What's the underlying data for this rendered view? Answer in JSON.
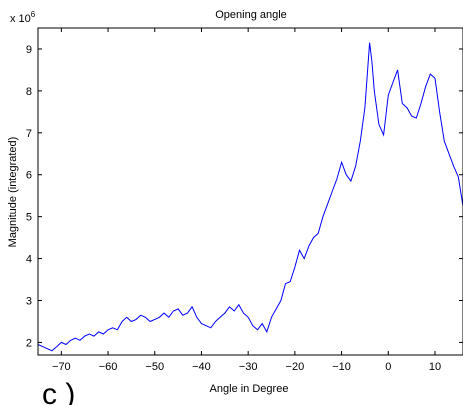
{
  "chart_data": {
    "type": "line",
    "title": "Opening angle",
    "xlabel": "Angle in Degree",
    "ylabel": "Magnitude (integrated)",
    "y_exponent_base": "x 10",
    "y_exponent_power": "6",
    "xlim": [
      -75,
      16
    ],
    "ylim": [
      1.7,
      9.5
    ],
    "x_ticks": [
      -70,
      -60,
      -50,
      -40,
      -30,
      -20,
      -10,
      0,
      10
    ],
    "x_tick_labels": [
      "−70",
      "−60",
      "−50",
      "−40",
      "−30",
      "−20",
      "−10",
      "0",
      "10"
    ],
    "y_ticks": [
      2,
      3,
      4,
      5,
      6,
      7,
      8,
      9
    ],
    "y_tick_labels": [
      "2",
      "3",
      "4",
      "5",
      "6",
      "7",
      "8",
      "9"
    ],
    "grid": false,
    "line_color": "#0000ff",
    "series": [
      {
        "x": [
          -75,
          -74,
          -73,
          -72,
          -71,
          -70,
          -69,
          -68,
          -67,
          -66,
          -65,
          -64,
          -63,
          -62,
          -61,
          -60,
          -59,
          -58,
          -57,
          -56,
          -55,
          -54,
          -53,
          -52,
          -51,
          -50,
          -49,
          -48,
          -47,
          -46,
          -45,
          -44,
          -43,
          -42,
          -41,
          -40,
          -39,
          -38,
          -37,
          -36,
          -35,
          -34,
          -33,
          -32,
          -31,
          -30,
          -29,
          -28,
          -27,
          -26,
          -25,
          -24,
          -23,
          -22,
          -21,
          -20,
          -19,
          -18,
          -17,
          -16,
          -15,
          -14,
          -13,
          -12,
          -11,
          -10,
          -9,
          -8,
          -7,
          -6,
          -5,
          -4,
          -3.5,
          -3,
          -2,
          -1,
          0,
          1,
          2,
          3,
          4,
          5,
          6,
          7,
          8,
          9,
          10,
          11,
          12,
          13,
          14,
          15,
          16
        ],
        "y": [
          1.95,
          1.9,
          1.85,
          1.8,
          1.9,
          2.0,
          1.95,
          2.05,
          2.1,
          2.05,
          2.15,
          2.2,
          2.15,
          2.25,
          2.2,
          2.3,
          2.35,
          2.3,
          2.5,
          2.6,
          2.5,
          2.55,
          2.65,
          2.6,
          2.5,
          2.55,
          2.6,
          2.7,
          2.6,
          2.75,
          2.8,
          2.65,
          2.7,
          2.85,
          2.6,
          2.45,
          2.4,
          2.35,
          2.5,
          2.6,
          2.7,
          2.85,
          2.75,
          2.9,
          2.7,
          2.6,
          2.4,
          2.3,
          2.45,
          2.25,
          2.6,
          2.8,
          3.0,
          3.4,
          3.45,
          3.8,
          4.2,
          4.0,
          4.3,
          4.5,
          4.6,
          5.0,
          5.3,
          5.6,
          5.9,
          6.3,
          6.0,
          5.85,
          6.2,
          6.8,
          7.6,
          9.15,
          8.7,
          8.0,
          7.2,
          6.95,
          7.9,
          8.2,
          8.5,
          7.7,
          7.6,
          7.4,
          7.35,
          7.7,
          8.1,
          8.4,
          8.3,
          7.5,
          6.8,
          6.5,
          6.2,
          5.95,
          5.25
        ]
      }
    ]
  },
  "panel_label": "c )"
}
